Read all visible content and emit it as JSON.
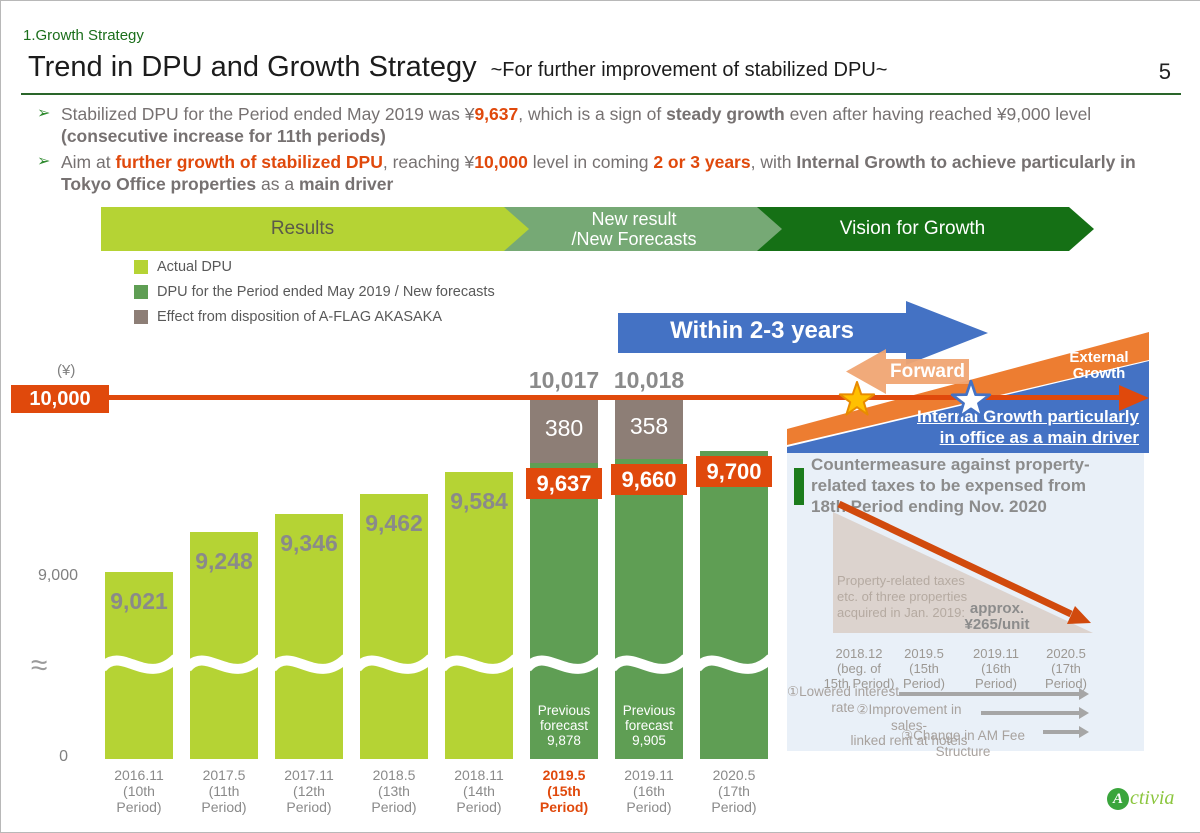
{
  "slide": {
    "section": "1.Growth Strategy",
    "title": "Trend in DPU and Growth Strategy",
    "subtitle": "~For further improvement of stabilized DPU~",
    "page_number": "5",
    "logo": {
      "circle_letter": "A",
      "text": "ctivia"
    }
  },
  "bullets": {
    "marker": "➢",
    "items": [
      {
        "segments": [
          {
            "t": "Stabilized DPU for the Period ended May 2019 was ¥"
          },
          {
            "t": "9,637",
            "s": "ob"
          },
          {
            "t": ", which is a sign of "
          },
          {
            "t": "steady growth",
            "s": "b"
          },
          {
            "t": " even after having reached ¥9,000 level "
          },
          {
            "t": "(consecutive increase for 11th periods)",
            "s": "b"
          }
        ]
      },
      {
        "segments": [
          {
            "t": "Aim at "
          },
          {
            "t": "further growth of stabilized DPU",
            "s": "ob"
          },
          {
            "t": ", reaching ¥"
          },
          {
            "t": "10,000",
            "s": "ob"
          },
          {
            "t": " level in coming "
          },
          {
            "t": "2 or 3 years",
            "s": "ob"
          },
          {
            "t": ", with "
          },
          {
            "t": "Internal Growth to achieve particularly in Tokyo Office properties",
            "s": "b"
          },
          {
            "t": " as a "
          },
          {
            "t": "main driver",
            "s": "b"
          }
        ]
      }
    ]
  },
  "stage_band": [
    {
      "label": "Results",
      "color": "#b5d334",
      "text_color": "#5a5a49"
    },
    {
      "label": "New result\n/New Forecasts",
      "color": "#76a975",
      "text_color": "#ffffff"
    },
    {
      "label": "Vision for Growth",
      "color": "#157015",
      "text_color": "#ffffff"
    }
  ],
  "annotations": {
    "within_label": "Within 2-3 years",
    "forward_label": "Forward",
    "external_label": "External\nGrowth",
    "internal_line1": "Internal Growth particularly",
    "internal_line2": "in office as a main driver"
  },
  "chart_data": {
    "type": "bar",
    "title": "Trend in DPU",
    "unit": "yen per unit",
    "target_line": {
      "value": 10000,
      "label": "10,000"
    },
    "y_axis": {
      "unit_label": "(¥)",
      "ticks": [
        {
          "value": 9000,
          "label": "9,000"
        },
        {
          "value": 0,
          "label": "0"
        }
      ],
      "break_symbol": "≈",
      "axis_break": true
    },
    "legend": [
      {
        "label": "Actual DPU",
        "color": "#b5d334"
      },
      {
        "label": "DPU for the Period ended May 2019 / New forecasts",
        "color": "#5f9e54"
      },
      {
        "label": "Effect from disposition of A-FLAG AKASAKA",
        "color": "#8d7e76"
      }
    ],
    "bars": [
      {
        "category": [
          "2016.11",
          "(10th",
          "Period)"
        ],
        "actual": 9021,
        "value_label": "9,021"
      },
      {
        "category": [
          "2017.5",
          "(11th",
          "Period)"
        ],
        "actual": 9248,
        "value_label": "9,248"
      },
      {
        "category": [
          "2017.11",
          "(12th",
          "Period)"
        ],
        "actual": 9346,
        "value_label": "9,346"
      },
      {
        "category": [
          "2018.5",
          "(13th",
          "Period)"
        ],
        "actual": 9462,
        "value_label": "9,462"
      },
      {
        "category": [
          "2018.11",
          "(14th",
          "Period)"
        ],
        "actual": 9584,
        "value_label": "9,584"
      },
      {
        "category": [
          "2019.5",
          "(15th",
          "Period)"
        ],
        "highlight": true,
        "stabilized": 9637,
        "stabilized_label": "9,637",
        "disposition_effect": 380,
        "disposition_label": "380",
        "total": 10017,
        "total_label": "10,017",
        "previous_forecast": 9878,
        "previous_forecast_label": [
          "Previous",
          "forecast",
          "9,878"
        ]
      },
      {
        "category": [
          "2019.11",
          "(16th",
          "Period)"
        ],
        "stabilized": 9660,
        "stabilized_label": "9,660",
        "disposition_effect": 358,
        "disposition_label": "358",
        "total": 10018,
        "total_label": "10,018",
        "previous_forecast": 9905,
        "previous_forecast_label": [
          "Previous",
          "forecast",
          "9,905"
        ]
      },
      {
        "category": [
          "2020.5",
          "(17th",
          "Period)"
        ],
        "stabilized": 9700,
        "stabilized_label": "9,700"
      }
    ]
  },
  "side_panel": {
    "title": "Countermeasure against property-\nrelated taxes to be expensed from\n18th Period ending Nov. 2020",
    "note": "Property-related taxes\netc. of three properties\nacquired in Jan. 2019:",
    "approx": "approx.\n¥265/unit",
    "timeline": [
      "2018.12\n(beg. of\n15th Period)",
      "2019.5\n(15th\nPeriod)",
      "2019.11\n(16th\nPeriod)",
      "2020.5\n(17th\nPeriod)"
    ],
    "drivers": [
      {
        "label": "①Lowered interest\nrate"
      },
      {
        "label": "②Improvement in sales-\nlinked rent at hotels"
      },
      {
        "label": "③Change in AM Fee Structure"
      }
    ]
  },
  "colors": {
    "lime": "#b5d334",
    "green": "#5f9e54",
    "brown": "#8d7e76",
    "orange": "#e0490c",
    "blue": "#4472c4",
    "peach": "#f1a673",
    "orange_wedge": "#ed7d31",
    "panel_blue": "#e9f0f8",
    "taupe": "#d9cec7",
    "red_arrow": "#d14a0d",
    "gold": "#ffc000",
    "dark_green": "#157015"
  }
}
